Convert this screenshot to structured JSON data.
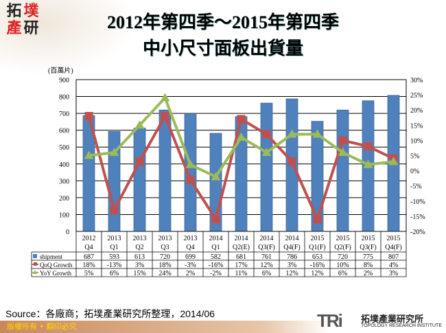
{
  "header": {
    "title_line1": "2012年第四季～2015年第四季",
    "title_line2": "中小尺寸面板出貨量",
    "logo_chars": [
      "拓",
      "墣",
      "產",
      "研"
    ]
  },
  "chart_data": {
    "type": "bar+line",
    "title": "2012年第四季～2015年第四季 中小尺寸面板出貨量",
    "ylabel": "(百萬片)",
    "ylim": [
      0,
      900
    ],
    "y_ticks": [
      0,
      100,
      200,
      300,
      400,
      500,
      600,
      700,
      800,
      900
    ],
    "y2lim": [
      -20,
      30
    ],
    "y2_ticks": [
      "-20%",
      "-15%",
      "-10%",
      "-5%",
      "0%",
      "5%",
      "10%",
      "15%",
      "20%",
      "25%",
      "30%"
    ],
    "grid": true,
    "categories": [
      [
        "2012",
        "Q4"
      ],
      [
        "2013",
        "Q1"
      ],
      [
        "2013",
        "Q2"
      ],
      [
        "2013",
        "Q3"
      ],
      [
        "2013",
        "Q4"
      ],
      [
        "2014",
        "Q1"
      ],
      [
        "2014",
        "Q2(E)"
      ],
      [
        "2014",
        "Q3(F)"
      ],
      [
        "2014",
        "Q4(F)"
      ],
      [
        "2015",
        "Q1(F)"
      ],
      [
        "2015",
        "Q2(F)"
      ],
      [
        "2015",
        "Q3(F)"
      ],
      [
        "2015",
        "Q4(F)"
      ]
    ],
    "series": [
      {
        "name": "shipment",
        "type": "bar",
        "axis": "left",
        "color": "#4f81bd",
        "values": [
          687,
          593,
          613,
          720,
          699,
          582,
          681,
          761,
          786,
          653,
          720,
          775,
          807
        ],
        "labels": [
          "687",
          "593",
          "613",
          "720",
          "699",
          "582",
          "681",
          "761",
          "786",
          "653",
          "720",
          "775",
          "807"
        ]
      },
      {
        "name": "QoQ Growth",
        "type": "line",
        "axis": "right",
        "color": "#c0504d",
        "values": [
          18,
          -13,
          3,
          18,
          -3,
          -16,
          17,
          12,
          3,
          -16,
          10,
          8,
          4
        ],
        "labels": [
          "18%",
          "-13%",
          "3%",
          "18%",
          "-3%",
          "-16%",
          "17%",
          "12%",
          "3%",
          "-16%",
          "10%",
          "8%",
          "4%"
        ]
      },
      {
        "name": "YoY Growth",
        "type": "line",
        "axis": "right",
        "color": "#9bbb59",
        "values": [
          5,
          6,
          15,
          24,
          2,
          -2,
          11,
          6,
          12,
          12,
          6,
          2,
          3
        ],
        "labels": [
          "5%",
          "6%",
          "15%",
          "24%",
          "2%",
          "-2%",
          "11%",
          "6%",
          "12%",
          "12%",
          "6%",
          "2%",
          "3%"
        ]
      }
    ],
    "legend": "data-table"
  },
  "footer": {
    "source": "Source：各廠商；拓墣產業研究所整理，2014/06",
    "copyright": "版權所有 • 翻印必究",
    "tri_logo": "TRi",
    "tri_cn": "拓墣產業研究所",
    "tri_en": "TOPOLOGY RESEARCH INSTITUTE"
  }
}
